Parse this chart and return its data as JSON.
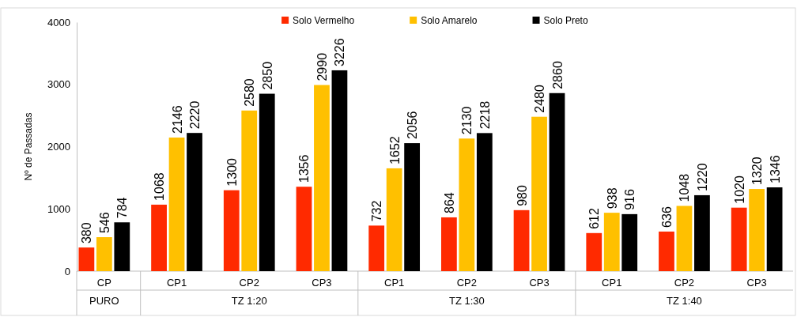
{
  "chart_data": {
    "type": "bar",
    "ylabel": "Nº de Passadas",
    "categories": [
      "CP",
      "CP1",
      "CP2",
      "CP3",
      "CP1",
      "CP2",
      "CP3",
      "CP1",
      "CP2",
      "CP3"
    ],
    "series": [
      {
        "name": "Solo Vermelho",
        "color": "#ff2a00",
        "values": [
          380,
          1068,
          1300,
          1356,
          732,
          864,
          980,
          612,
          636,
          1020
        ]
      },
      {
        "name": "Solo Amarelo",
        "color": "#ffc000",
        "values": [
          546,
          2146,
          2580,
          2990,
          1652,
          2130,
          2480,
          938,
          1048,
          1320
        ]
      },
      {
        "name": "Solo Preto",
        "color": "#000000",
        "values": [
          784,
          2220,
          2850,
          3226,
          2056,
          2218,
          2860,
          916,
          1220,
          1346
        ]
      }
    ],
    "annotations": [
      "PURO",
      "TZ 1:20",
      "TZ 1:30",
      "TZ 1:40"
    ],
    "ylim": [
      0,
      4000
    ],
    "yticks": [
      0,
      1000,
      2000,
      3000,
      4000
    ],
    "grid": false,
    "legend": "top",
    "data_labels": true
  }
}
